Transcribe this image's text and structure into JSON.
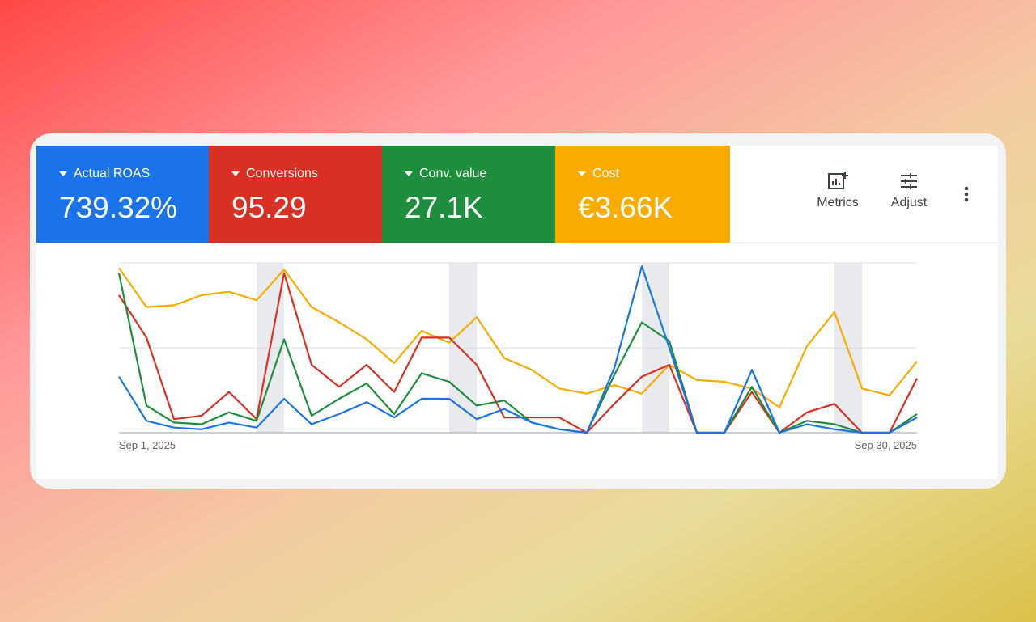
{
  "chart_data": {
    "type": "line",
    "categories": [
      "Sep 1, 2025",
      null,
      null,
      null,
      null,
      null,
      null,
      null,
      null,
      null,
      null,
      null,
      null,
      null,
      null,
      null,
      null,
      null,
      null,
      null,
      null,
      null,
      null,
      null,
      null,
      null,
      null,
      null,
      null,
      "Sep 30, 2025"
    ],
    "highlight_ranges": [
      [
        5,
        6
      ],
      [
        12,
        13
      ],
      [
        19,
        20
      ],
      [
        26,
        27
      ]
    ],
    "ylim": [
      0,
      100
    ],
    "yticks": [
      0,
      50,
      100
    ],
    "grid": true,
    "series": [
      {
        "name": "Actual ROAS",
        "total": "739.32%",
        "color": "#1a73e8",
        "values": [
          33,
          7,
          3,
          2,
          6,
          3,
          20,
          5,
          11,
          18,
          9,
          20,
          20,
          8,
          14,
          6,
          2,
          0,
          38,
          98,
          50,
          0,
          0,
          37,
          0,
          5,
          2,
          0,
          0,
          9
        ]
      },
      {
        "name": "Conversions",
        "total": "95.29",
        "color": "#d93025",
        "values": [
          81,
          56,
          8,
          10,
          24,
          8,
          94,
          40,
          27,
          40,
          24,
          56,
          56,
          40,
          9,
          9,
          9,
          0,
          17,
          33,
          40,
          0,
          0,
          24,
          0,
          12,
          17,
          0,
          0,
          32
        ]
      },
      {
        "name": "Conv. value",
        "total": "27.1K",
        "color": "#1e8e3e",
        "values": [
          94,
          16,
          6,
          5,
          12,
          7,
          55,
          10,
          20,
          29,
          11,
          35,
          30,
          16,
          19,
          6,
          2,
          0,
          34,
          65,
          54,
          0,
          0,
          27,
          0,
          7,
          5,
          0,
          0,
          11
        ]
      },
      {
        "name": "Cost",
        "total": "€3.66K",
        "color": "#f9ab00",
        "values": [
          97,
          74,
          75,
          81,
          83,
          78,
          96,
          74,
          65,
          55,
          41,
          60,
          53,
          68,
          44,
          37,
          26,
          23,
          28,
          23,
          40,
          31,
          30,
          26,
          15,
          51,
          71,
          26,
          22,
          42
        ]
      }
    ]
  },
  "toolbar": {
    "metrics": "Metrics",
    "adjust": "Adjust"
  }
}
